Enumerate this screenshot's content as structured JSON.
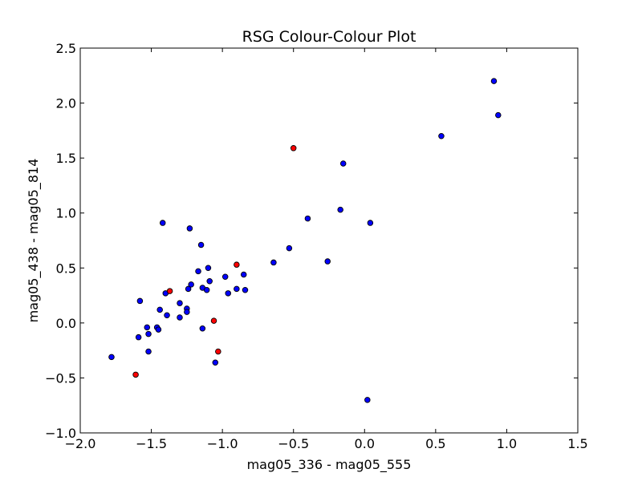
{
  "chart_data": {
    "type": "scatter",
    "title": "RSG Colour-Colour Plot",
    "xlabel": "mag05_336 - mag05_555",
    "ylabel": "mag05_438 - mag05_814",
    "xlim": [
      -2.0,
      1.5
    ],
    "ylim": [
      -1.0,
      2.5
    ],
    "x_ticks": [
      "−2.0",
      "−1.5",
      "−1.0",
      "−0.5",
      "0.0",
      "0.5",
      "1.0",
      "1.5"
    ],
    "y_ticks": [
      "−1.0",
      "−0.5",
      "0.0",
      "0.5",
      "1.0",
      "1.5",
      "2.0",
      "2.5"
    ],
    "grid": false,
    "series": [
      {
        "color": "#0000ff",
        "points": [
          [
            -1.78,
            -0.31
          ],
          [
            -1.59,
            -0.13
          ],
          [
            -1.58,
            0.2
          ],
          [
            -1.53,
            -0.04
          ],
          [
            -1.52,
            -0.26
          ],
          [
            -1.52,
            -0.1
          ],
          [
            -1.46,
            -0.04
          ],
          [
            -1.45,
            -0.06
          ],
          [
            -1.44,
            0.12
          ],
          [
            -1.42,
            0.91
          ],
          [
            -1.4,
            0.27
          ],
          [
            -1.39,
            0.07
          ],
          [
            -1.3,
            0.05
          ],
          [
            -1.3,
            0.18
          ],
          [
            -1.25,
            0.13
          ],
          [
            -1.25,
            0.1
          ],
          [
            -1.24,
            0.31
          ],
          [
            -1.23,
            0.86
          ],
          [
            -1.22,
            0.35
          ],
          [
            -1.17,
            0.47
          ],
          [
            -1.15,
            0.71
          ],
          [
            -1.14,
            -0.05
          ],
          [
            -1.14,
            0.32
          ],
          [
            -1.11,
            0.3
          ],
          [
            -1.1,
            0.5
          ],
          [
            -1.09,
            0.38
          ],
          [
            -1.05,
            -0.36
          ],
          [
            -0.98,
            0.42
          ],
          [
            -0.96,
            0.27
          ],
          [
            -0.9,
            0.31
          ],
          [
            -0.85,
            0.44
          ],
          [
            -0.84,
            0.3
          ],
          [
            -0.64,
            0.55
          ],
          [
            -0.53,
            0.68
          ],
          [
            -0.4,
            0.95
          ],
          [
            -0.26,
            0.56
          ],
          [
            -0.17,
            1.03
          ],
          [
            -0.15,
            1.45
          ],
          [
            0.02,
            -0.7
          ],
          [
            0.04,
            0.91
          ],
          [
            0.54,
            1.7
          ],
          [
            0.91,
            2.2
          ],
          [
            0.94,
            1.89
          ]
        ]
      },
      {
        "color": "#ff0000",
        "points": [
          [
            -1.61,
            -0.47
          ],
          [
            -1.37,
            0.29
          ],
          [
            -1.06,
            0.02
          ],
          [
            -1.03,
            -0.26
          ],
          [
            -0.9,
            0.53
          ],
          [
            -0.5,
            1.59
          ]
        ]
      }
    ]
  }
}
